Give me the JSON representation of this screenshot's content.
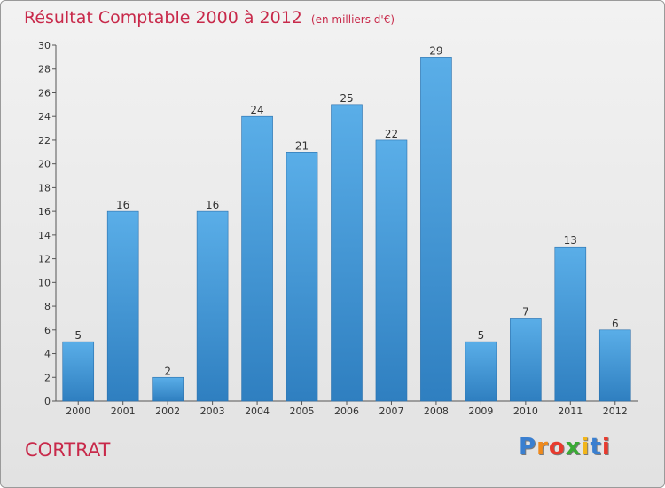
{
  "chart_data": {
    "type": "bar",
    "title": "Résultat Comptable 2000 à 2012",
    "subtitle": "(en milliers d'€)",
    "categories": [
      "2000",
      "2001",
      "2002",
      "2003",
      "2004",
      "2005",
      "2006",
      "2007",
      "2008",
      "2009",
      "2010",
      "2011",
      "2012"
    ],
    "values": [
      5,
      16,
      2,
      16,
      24,
      21,
      25,
      22,
      29,
      5,
      7,
      13,
      6
    ],
    "data_labels": [
      "5",
      "16",
      "2",
      "16",
      "24",
      "21",
      "25",
      "22",
      "29",
      "5",
      "7",
      "13",
      "6"
    ],
    "ylim": [
      0,
      30
    ],
    "yticks": [
      0,
      2,
      4,
      6,
      8,
      10,
      12,
      14,
      16,
      18,
      20,
      22,
      24,
      26,
      28,
      30
    ],
    "ytick_labels": [
      "0",
      "2",
      "4",
      "6",
      "8",
      "10",
      "12",
      "14",
      "16",
      "18",
      "20",
      "22",
      "24",
      "26",
      "28",
      "30"
    ],
    "xlabel": "",
    "ylabel": "",
    "grid": false,
    "bar_color": "#4fa3e3"
  },
  "footer": {
    "commune": "CORTRAT",
    "logo_text": "Proxiti",
    "logo_colors": [
      "#3a7fd0",
      "#f08a1c",
      "#e83a2e",
      "#3aaa35",
      "#f2b61b",
      "#3a7fd0",
      "#e83a2e"
    ]
  }
}
